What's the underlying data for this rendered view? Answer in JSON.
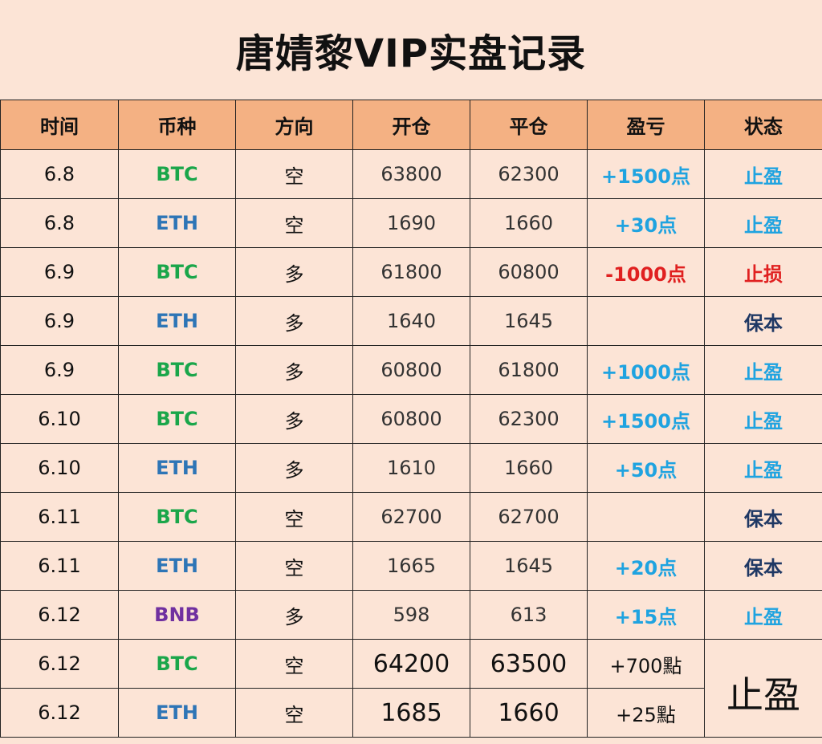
{
  "title": "唐婧黎VIP实盘记录",
  "headers": [
    "时间",
    "币种",
    "方向",
    "开仓",
    "平仓",
    "盈亏",
    "状态"
  ],
  "rows": [
    {
      "time": "6.8",
      "coin": "BTC",
      "dir": "空",
      "open": "63800",
      "close": "62300",
      "pnl": "+1500点",
      "status": "止盈"
    },
    {
      "time": "6.8",
      "coin": "ETH",
      "dir": "空",
      "open": "1690",
      "close": "1660",
      "pnl": "+30点",
      "status": "止盈"
    },
    {
      "time": "6.9",
      "coin": "BTC",
      "dir": "多",
      "open": "61800",
      "close": "60800",
      "pnl": "-1000点",
      "status": "止损"
    },
    {
      "time": "6.9",
      "coin": "ETH",
      "dir": "多",
      "open": "1640",
      "close": "1645",
      "pnl": "",
      "status": "保本"
    },
    {
      "time": "6.9",
      "coin": "BTC",
      "dir": "多",
      "open": "60800",
      "close": "61800",
      "pnl": "+1000点",
      "status": "止盈"
    },
    {
      "time": "6.10",
      "coin": "BTC",
      "dir": "多",
      "open": "60800",
      "close": "62300",
      "pnl": "+1500点",
      "status": "止盈"
    },
    {
      "time": "6.10",
      "coin": "ETH",
      "dir": "多",
      "open": "1610",
      "close": "1660",
      "pnl": "+50点",
      "status": "止盈"
    },
    {
      "time": "6.11",
      "coin": "BTC",
      "dir": "空",
      "open": "62700",
      "close": "62700",
      "pnl": "",
      "status": "保本"
    },
    {
      "time": "6.11",
      "coin": "ETH",
      "dir": "空",
      "open": "1665",
      "close": "1645",
      "pnl": "+20点",
      "status": "保本"
    },
    {
      "time": "6.12",
      "coin": "BNB",
      "dir": "多",
      "open": "598",
      "close": "613",
      "pnl": "+15点",
      "status": "止盈"
    },
    {
      "time": "6.12",
      "coin": "BTC",
      "dir": "空",
      "open": "64200",
      "close": "63500",
      "pnl": "+700點",
      "status": "止盈"
    },
    {
      "time": "6.12",
      "coin": "ETH",
      "dir": "空",
      "open": "1685",
      "close": "1660",
      "pnl": "+25點",
      "status": "止盈"
    }
  ],
  "colors": {
    "background": "#fce4d6",
    "header_bg": "#f4b183",
    "btc": "#1aa64a",
    "eth": "#2e75b6",
    "bnb": "#7030a0",
    "profit": "#1fa3e0",
    "loss": "#e02020",
    "breakeven": "#1f3864"
  }
}
